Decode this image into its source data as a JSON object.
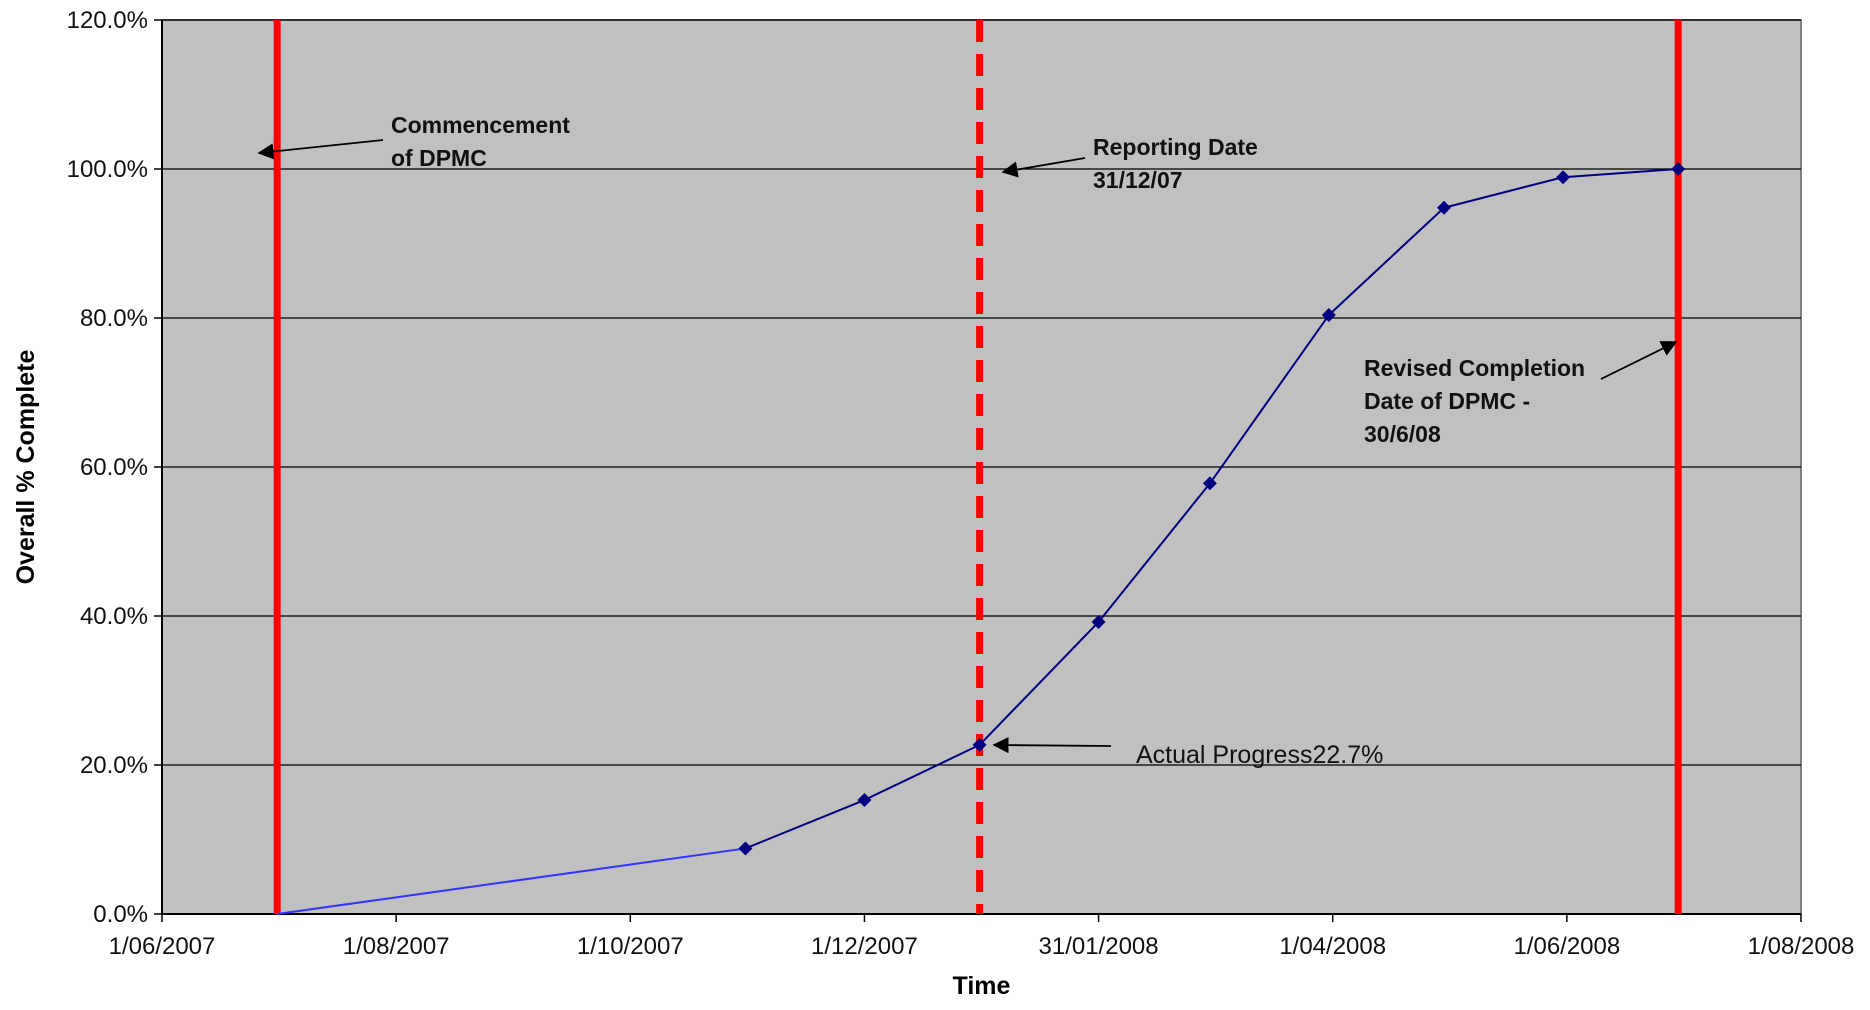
{
  "chart_data": {
    "type": "line",
    "title": "",
    "xlabel": "Time",
    "ylabel": "Overall % Complete",
    "ylim": [
      0,
      120
    ],
    "xlim": [
      "2007-06-01",
      "2008-08-01"
    ],
    "grid": true,
    "legend": "none",
    "x_tick_labels": [
      "1/06/2007",
      "1/08/2007",
      "1/10/2007",
      "1/12/2007",
      "31/01/2008",
      "1/04/2008",
      "1/06/2008",
      "1/08/2008"
    ],
    "x_tick_dates": [
      "2007-06-01",
      "2007-08-01",
      "2007-10-01",
      "2007-12-01",
      "2008-01-31",
      "2008-04-01",
      "2008-06-01",
      "2008-08-01"
    ],
    "y_tick_labels": [
      "0.0%",
      "20.0%",
      "40.0%",
      "60.0%",
      "80.0%",
      "100.0%",
      "120.0%"
    ],
    "y_tick_values": [
      0,
      20,
      40,
      60,
      80,
      100,
      120
    ],
    "series": [
      {
        "x": [
          "2007-07-01",
          "2007-10-31",
          "2007-12-01",
          "2007-12-31",
          "2008-01-31",
          "2008-02-29",
          "2008-03-31",
          "2008-04-30",
          "2008-05-31",
          "2008-06-30"
        ],
        "values": [
          0,
          8.8,
          15.3,
          22.7,
          39.2,
          57.8,
          80.4,
          94.8,
          98.9,
          100
        ],
        "color": "#000080"
      }
    ],
    "reference_lines": [
      {
        "x": "2007-07-01",
        "style": "solid",
        "color": "#ff0000"
      },
      {
        "x": "2007-12-31",
        "style": "dashed",
        "color": "#ff0000"
      },
      {
        "x": "2008-06-30",
        "style": "solid",
        "color": "#ff0000"
      }
    ],
    "annotations": [
      {
        "lines": [
          "Commencement",
          "of DPMC"
        ],
        "weight": "bold"
      },
      {
        "lines": [
          "Reporting Date",
          "31/12/07"
        ],
        "weight": "bold"
      },
      {
        "lines": [
          "Revised Completion",
          "Date of DPMC -",
          "30/6/08"
        ],
        "weight": "bold"
      },
      {
        "lines": [
          "Actual Progress22.7%"
        ],
        "weight": "regular"
      }
    ],
    "colors": {
      "plot_background": "#c0c0c0",
      "gridline": "#000000",
      "line": "#000080",
      "first_segment": "#3333ff",
      "marker": "#000080",
      "reference": "#ff0000"
    }
  }
}
